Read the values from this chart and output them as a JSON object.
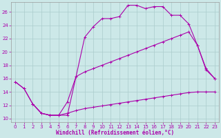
{
  "xlabel": "Windchill (Refroidissement éolien,°C)",
  "bg_color": "#cce8e8",
  "grid_color": "#aacccc",
  "line_color": "#aa00aa",
  "xlim": [
    -0.5,
    23.5
  ],
  "ylim": [
    9.5,
    27.5
  ],
  "xticks": [
    0,
    1,
    2,
    3,
    4,
    5,
    6,
    7,
    8,
    9,
    10,
    11,
    12,
    13,
    14,
    15,
    16,
    17,
    18,
    19,
    20,
    21,
    22,
    23
  ],
  "yticks": [
    10,
    12,
    14,
    16,
    18,
    20,
    22,
    24,
    26
  ],
  "line1_x": [
    0,
    1,
    2,
    3,
    4,
    5,
    6,
    7,
    8,
    9,
    10,
    11,
    12,
    13,
    14,
    15,
    16,
    17,
    18,
    19,
    20,
    21,
    22,
    23
  ],
  "line1_y": [
    15.5,
    14.5,
    12.2,
    10.8,
    10.5,
    10.5,
    10.5,
    16.3,
    22.2,
    23.8,
    25.0,
    25.0,
    25.3,
    27.0,
    27.0,
    26.5,
    26.8,
    26.8,
    25.5,
    25.5,
    24.2,
    21.0,
    17.3,
    16.0
  ],
  "line2_x": [
    0,
    1,
    2,
    3,
    4,
    5,
    6,
    7,
    8,
    9,
    10,
    11,
    12,
    13,
    14,
    15,
    16,
    17,
    18,
    19,
    20,
    21,
    22,
    23
  ],
  "line2_y": [
    15.5,
    14.5,
    12.2,
    10.8,
    10.5,
    10.5,
    12.5,
    16.3,
    17.0,
    17.5,
    18.0,
    18.5,
    19.0,
    19.5,
    20.0,
    20.5,
    21.0,
    21.5,
    22.0,
    22.5,
    23.0,
    21.0,
    17.5,
    16.0
  ],
  "line3_x": [
    2,
    3,
    4,
    5,
    6,
    7,
    8,
    9,
    10,
    11,
    12,
    13,
    14,
    15,
    16,
    17,
    18,
    19,
    20,
    21,
    22,
    23
  ],
  "line3_y": [
    12.2,
    10.8,
    10.5,
    10.5,
    10.8,
    11.2,
    11.5,
    11.7,
    11.9,
    12.1,
    12.3,
    12.5,
    12.7,
    12.9,
    13.1,
    13.3,
    13.5,
    13.7,
    13.9,
    14.0,
    14.0,
    14.0
  ]
}
